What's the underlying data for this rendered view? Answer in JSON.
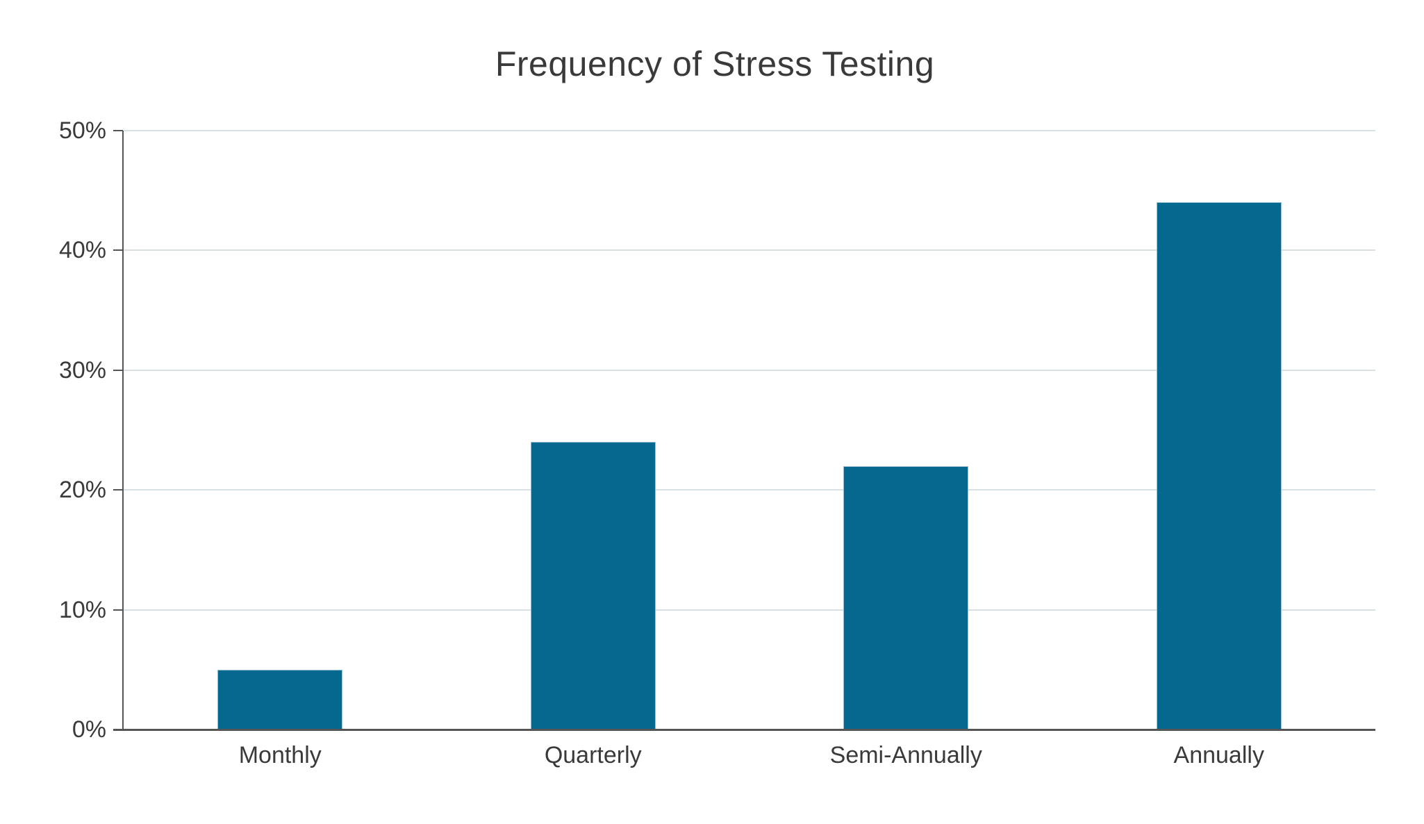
{
  "title": "Frequency of Stress Testing",
  "colors": {
    "bar_fill": "#05698F",
    "bar_edge": "rgba(176,208,224,0.85)",
    "gridline": "#d9e0e4",
    "axis": "#555555",
    "text": "#3A3A3A"
  },
  "chart_data": {
    "type": "bar",
    "title": "Frequency of Stress Testing",
    "categories": [
      "Monthly",
      "Quarterly",
      "Semi-Annually",
      "Annually"
    ],
    "values": [
      5,
      24,
      22,
      44
    ],
    "value_unit": "%",
    "xlabel": "",
    "ylabel": "",
    "ylim": [
      0,
      50
    ],
    "yticks": [
      0,
      10,
      20,
      30,
      40,
      50
    ],
    "ytick_labels": [
      "0%",
      "10%",
      "20%",
      "30%",
      "40%",
      "50%"
    ],
    "grid": "horizontal",
    "legend_position": "none",
    "bar_color": "#05698F"
  }
}
